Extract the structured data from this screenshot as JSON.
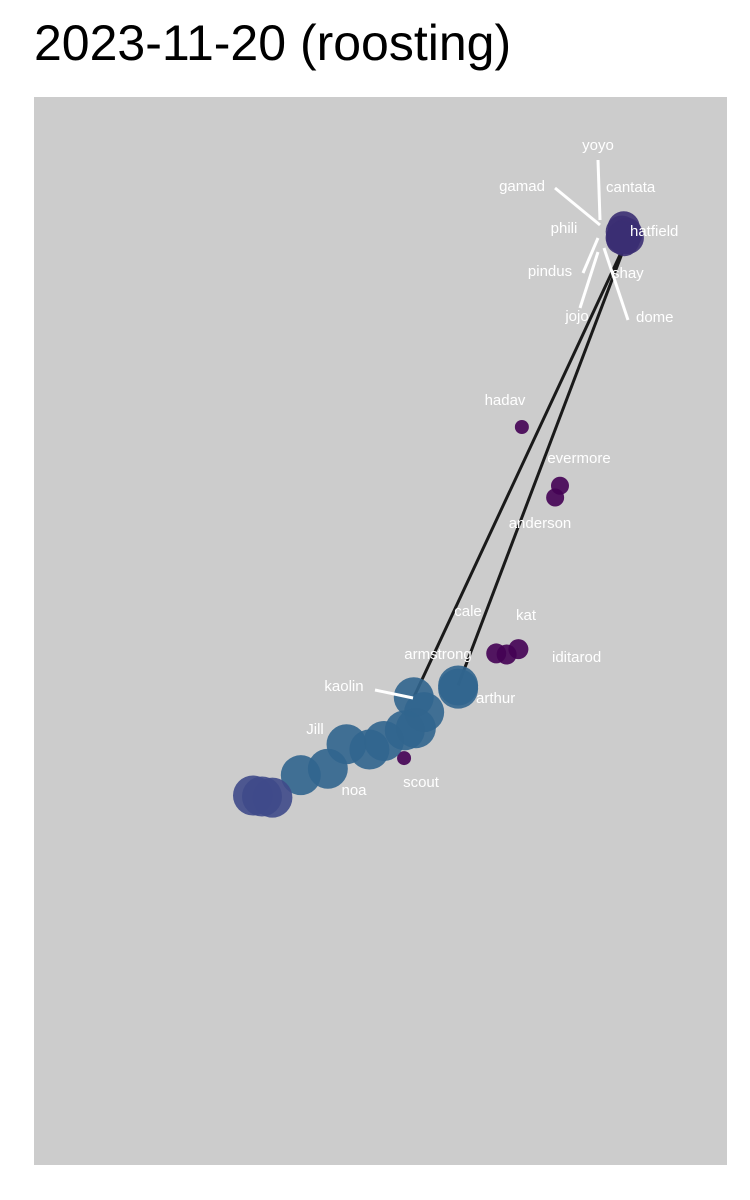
{
  "chart_data": {
    "type": "scatter",
    "title": "2023-11-20 (roosting)",
    "xlabel": "",
    "ylabel": "",
    "grid": false,
    "legend": "none",
    "colors": {
      "panel": "#cccccc",
      "labels": "#ffffff",
      "leader": "#ffffff",
      "dark_purple": "#440154",
      "indigo": "#3b2f73",
      "navy": "#3f4a89",
      "steel_blue": "#31658e"
    },
    "points": [
      {
        "name": "yoyo",
        "x": 0.851,
        "y": 0.878,
        "size": 16,
        "color": "#3b2f73"
      },
      {
        "name": "cantata",
        "x": 0.855,
        "y": 0.872,
        "size": 16,
        "color": "#3b2f73"
      },
      {
        "name": "gamad",
        "x": 0.848,
        "y": 0.874,
        "size": 16,
        "color": "#3b2f73"
      },
      {
        "name": "phili",
        "x": 0.849,
        "y": 0.869,
        "size": 16,
        "color": "#3b2f73"
      },
      {
        "name": "hatfield",
        "x": 0.857,
        "y": 0.868,
        "size": 16,
        "color": "#3b2f73"
      },
      {
        "name": "pindus",
        "x": 0.846,
        "y": 0.866,
        "size": 14,
        "color": "#3b2f73"
      },
      {
        "name": "shay",
        "x": 0.852,
        "y": 0.864,
        "size": 14,
        "color": "#3b2f73"
      },
      {
        "name": "jojo",
        "x": 0.845,
        "y": 0.868,
        "size": 14,
        "color": "#3b2f73"
      },
      {
        "name": "dome",
        "x": 0.854,
        "y": 0.866,
        "size": 14,
        "color": "#3b2f73"
      },
      {
        "name": "hadav",
        "x": 0.704,
        "y": 0.691,
        "size": 7,
        "color": "#440154"
      },
      {
        "name": "evermore",
        "x": 0.759,
        "y": 0.636,
        "size": 9,
        "color": "#440154"
      },
      {
        "name": "anderson",
        "x": 0.752,
        "y": 0.625,
        "size": 9,
        "color": "#440154"
      },
      {
        "name": "cale",
        "x": 0.667,
        "y": 0.479,
        "size": 10,
        "color": "#440154"
      },
      {
        "name": "kat",
        "x": 0.699,
        "y": 0.483,
        "size": 10,
        "color": "#440154"
      },
      {
        "name": "iditarod",
        "x": 0.682,
        "y": 0.478,
        "size": 10,
        "color": "#440154"
      },
      {
        "name": "armstrong",
        "x": 0.612,
        "y": 0.446,
        "size": 20,
        "color": "#31658e"
      },
      {
        "name": "arthur",
        "x": 0.612,
        "y": 0.449,
        "size": 20,
        "color": "#31658e"
      },
      {
        "name": "kaolin",
        "x": 0.548,
        "y": 0.438,
        "size": 20,
        "color": "#31658e"
      },
      {
        "name": "Jill",
        "x": 0.451,
        "y": 0.394,
        "size": 20,
        "color": "#31658e"
      },
      {
        "name": "noa",
        "x": 0.424,
        "y": 0.371,
        "size": 20,
        "color": "#31658e"
      },
      {
        "name": "scout",
        "x": 0.534,
        "y": 0.381,
        "size": 7,
        "color": "#440154"
      },
      {
        "name": "",
        "x": 0.563,
        "y": 0.424,
        "size": 20,
        "color": "#31658e"
      },
      {
        "name": "",
        "x": 0.551,
        "y": 0.409,
        "size": 20,
        "color": "#31658e"
      },
      {
        "name": "",
        "x": 0.535,
        "y": 0.407,
        "size": 20,
        "color": "#31658e"
      },
      {
        "name": "",
        "x": 0.505,
        "y": 0.397,
        "size": 20,
        "color": "#31658e"
      },
      {
        "name": "",
        "x": 0.484,
        "y": 0.389,
        "size": 20,
        "color": "#31658e"
      },
      {
        "name": "",
        "x": 0.385,
        "y": 0.365,
        "size": 20,
        "color": "#31658e"
      },
      {
        "name": "",
        "x": 0.316,
        "y": 0.346,
        "size": 20,
        "color": "#3f4a89"
      },
      {
        "name": "",
        "x": 0.344,
        "y": 0.344,
        "size": 20,
        "color": "#3f4a89"
      },
      {
        "name": "",
        "x": 0.329,
        "y": 0.345,
        "size": 20,
        "color": "#3f4a89"
      }
    ],
    "links": [
      {
        "from": 4,
        "to": 17
      },
      {
        "from": 4,
        "to": 16
      }
    ]
  }
}
